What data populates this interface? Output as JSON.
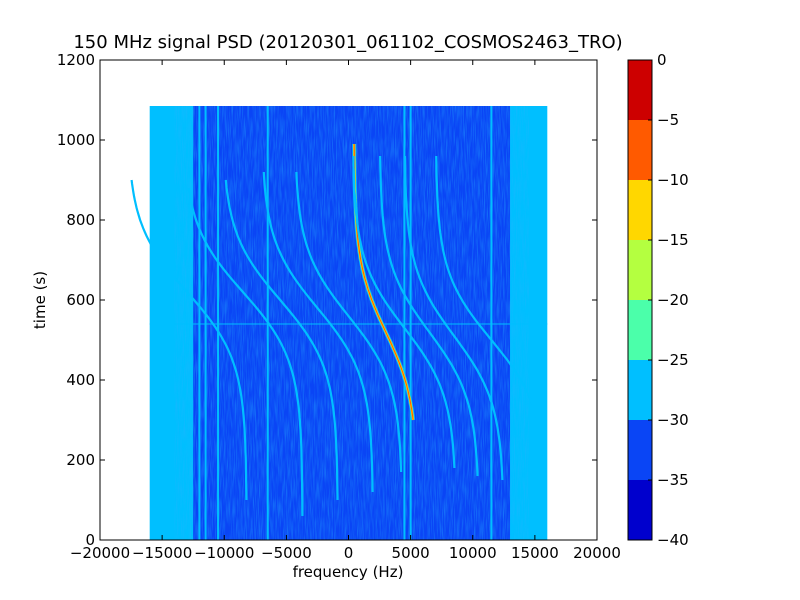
{
  "chart_data": {
    "type": "heatmap",
    "title": "150 MHz signal PSD (20120301_061102_COSMOS2463_TRO)",
    "xlabel": "frequency (Hz)",
    "ylabel": "time (s)",
    "xlim": [
      -20000,
      20000
    ],
    "ylim": [
      0,
      1200
    ],
    "x_ticks": [
      -20000,
      -15000,
      -10000,
      -5000,
      0,
      5000,
      10000,
      15000,
      20000
    ],
    "y_ticks": [
      0,
      200,
      400,
      600,
      800,
      1000,
      1200
    ],
    "data_extent": {
      "x": [
        -16000,
        16000
      ],
      "y": [
        0,
        1085
      ]
    },
    "colorbar": {
      "ticks": [
        0,
        -5,
        -10,
        -15,
        -20,
        -25,
        -30,
        -35,
        -40
      ],
      "levels": [
        {
          "range": [
            -40,
            -35
          ],
          "color": "#0000cd"
        },
        {
          "range": [
            -35,
            -30
          ],
          "color": "#0a45f5"
        },
        {
          "range": [
            -30,
            -25
          ],
          "color": "#00bfff"
        },
        {
          "range": [
            -25,
            -20
          ],
          "color": "#4bffaa"
        },
        {
          "range": [
            -20,
            -15
          ],
          "color": "#b4ff40"
        },
        {
          "range": [
            -15,
            -10
          ],
          "color": "#ffd700"
        },
        {
          "range": [
            -10,
            -5
          ],
          "color": "#ff5a00"
        },
        {
          "range": [
            -5,
            0
          ],
          "color": "#cd0000"
        }
      ]
    },
    "background_level": -32,
    "edge_band_level": -28,
    "vertical_lines_hz": [
      -12000,
      -11500,
      -10500,
      -6500,
      4500,
      5000,
      11500
    ],
    "horizontal_line_s": 540,
    "curves": [
      {
        "center_freq_hz": 3000,
        "center_time_s": 520,
        "half_span_hz": 1600,
        "time_range_s": [
          300,
          990
        ],
        "level": -8
      },
      {
        "center_freq_hz": 6500,
        "center_time_s": 520,
        "half_span_hz": 2500,
        "time_range_s": [
          160,
          960
        ],
        "level": -25
      },
      {
        "center_freq_hz": 8500,
        "center_time_s": 510,
        "half_span_hz": 2500,
        "time_range_s": [
          150,
          960
        ],
        "level": -25
      },
      {
        "center_freq_hz": 4500,
        "center_time_s": 530,
        "half_span_hz": 2600,
        "time_range_s": [
          180,
          960
        ],
        "level": -25
      },
      {
        "center_freq_hz": 0,
        "center_time_s": 560,
        "half_span_hz": 2700,
        "time_range_s": [
          170,
          920
        ],
        "level": -25
      },
      {
        "center_freq_hz": -2500,
        "center_time_s": 580,
        "half_span_hz": 2800,
        "time_range_s": [
          120,
          920
        ],
        "level": -25
      },
      {
        "center_freq_hz": -5500,
        "center_time_s": 600,
        "half_span_hz": 2900,
        "time_range_s": [
          100,
          900
        ],
        "level": -25
      },
      {
        "center_freq_hz": -8500,
        "center_time_s": 620,
        "half_span_hz": 3000,
        "time_range_s": [
          60,
          880
        ],
        "level": -28
      },
      {
        "center_freq_hz": 11500,
        "center_time_s": 500,
        "half_span_hz": 2800,
        "time_range_s": [
          150,
          960
        ],
        "level": -28
      },
      {
        "center_freq_hz": -13000,
        "center_time_s": 620,
        "half_span_hz": 3000,
        "time_range_s": [
          100,
          900
        ],
        "level": -28
      }
    ]
  }
}
